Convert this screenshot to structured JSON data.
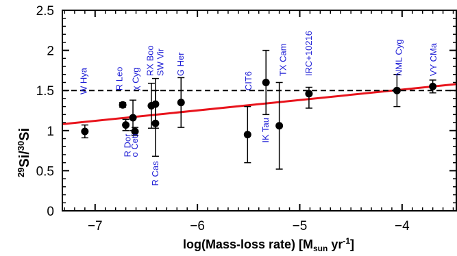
{
  "chart_data": {
    "type": "scatter",
    "xlabel": {
      "text": "log(Mass-loss rate) [M",
      "sub": "sun",
      "tail": " yr",
      "sup": "-1",
      "end": "]"
    },
    "ylabel": {
      "sup1": "29",
      "mid": "Si/",
      "sup2": "30",
      "end": "Si"
    },
    "xlim": [
      -7.32,
      -3.47
    ],
    "ylim": [
      0,
      2.5
    ],
    "x_ticks": [
      {
        "value": -7,
        "label": "−7"
      },
      {
        "value": -6,
        "label": "−6"
      },
      {
        "value": -5,
        "label": "−5"
      },
      {
        "value": -4,
        "label": "−4"
      }
    ],
    "y_ticks": [
      {
        "value": 0,
        "label": "0"
      },
      {
        "value": 0.5,
        "label": "0.5"
      },
      {
        "value": 1,
        "label": "1"
      },
      {
        "value": 1.5,
        "label": "1.5"
      },
      {
        "value": 2,
        "label": "2"
      },
      {
        "value": 2.5,
        "label": "2.5"
      }
    ],
    "points": [
      {
        "x": -7.1,
        "y": 0.99,
        "yerr_low": 0.08,
        "yerr_high": 0.08
      },
      {
        "x": -6.73,
        "y": 1.32,
        "yerr_low": 0.03,
        "yerr_high": 0.03
      },
      {
        "x": -6.7,
        "y": 1.07,
        "yerr_low": 0.07,
        "yerr_high": 0.07
      },
      {
        "x": -6.63,
        "y": 1.16,
        "yerr_low": 0.16,
        "yerr_high": 0.22
      },
      {
        "x": -6.61,
        "y": 0.99,
        "yerr_low": 0.05,
        "yerr_high": 0.05
      },
      {
        "x": -6.45,
        "y": 1.31,
        "yerr_low": 0.28,
        "yerr_high": 0.28
      },
      {
        "x": -6.41,
        "y": 1.33,
        "yerr_low": 0.3,
        "yerr_high": 0.32
      },
      {
        "x": -6.41,
        "y": 1.09,
        "yerr_low": 0.41,
        "yerr_high": 0.41
      },
      {
        "x": -6.16,
        "y": 1.35,
        "yerr_low": 0.31,
        "yerr_high": 0.31
      },
      {
        "x": -5.51,
        "y": 0.95,
        "yerr_low": 0.35,
        "yerr_high": 0.35
      },
      {
        "x": -5.33,
        "y": 1.6,
        "yerr_low": 0.4,
        "yerr_high": 0.4
      },
      {
        "x": -5.2,
        "y": 1.06,
        "yerr_low": 0.54,
        "yerr_high": 0.54
      },
      {
        "x": -4.91,
        "y": 1.46,
        "yerr_low": 0.18,
        "yerr_high": 0.08
      },
      {
        "x": -4.05,
        "y": 1.5,
        "yerr_low": 0.2,
        "yerr_high": 0.2
      },
      {
        "x": -3.7,
        "y": 1.55,
        "yerr_low": 0.08,
        "yerr_high": 0.08
      }
    ],
    "star_labels": [
      {
        "text": "W Hya",
        "x": -7.11,
        "y": 1.45,
        "anchor": "start"
      },
      {
        "text": "R Leo",
        "x": -6.76,
        "y": 1.5,
        "anchor": "start"
      },
      {
        "text": "χ Cyg",
        "x": -6.6,
        "y": 1.5,
        "anchor": "start"
      },
      {
        "text": "RX Boo",
        "x": -6.46,
        "y": 1.68,
        "anchor": "start"
      },
      {
        "text": "SW Vir",
        "x": -6.36,
        "y": 1.68,
        "anchor": "start"
      },
      {
        "text": "G Her",
        "x": -6.16,
        "y": 1.68,
        "anchor": "start"
      },
      {
        "text": "CIT6",
        "x": -5.5,
        "y": 1.5,
        "anchor": "start"
      },
      {
        "text": "TX Cam",
        "x": -5.16,
        "y": 1.68,
        "anchor": "start"
      },
      {
        "text": "IRC+10216",
        "x": -4.91,
        "y": 1.68,
        "anchor": "start"
      },
      {
        "text": "NML Cyg",
        "x": -4.03,
        "y": 1.68,
        "anchor": "start"
      },
      {
        "text": "VY CMa",
        "x": -3.69,
        "y": 1.68,
        "anchor": "start"
      },
      {
        "text": "R Dor",
        "x": -6.68,
        "y": 0.96,
        "anchor": "end"
      },
      {
        "text": "o Ceti",
        "x": -6.61,
        "y": 0.96,
        "anchor": "end"
      },
      {
        "text": "R Cas",
        "x": -6.41,
        "y": 0.62,
        "anchor": "end"
      },
      {
        "text": "IK Tau",
        "x": -5.33,
        "y": 1.16,
        "anchor": "end"
      }
    ],
    "reference_line": {
      "y": 1.5,
      "style": "dashed",
      "color": "#000000"
    },
    "fit_line": {
      "x": [
        -7.32,
        -3.47
      ],
      "y": [
        1.08,
        1.58
      ],
      "color": "#e8141c"
    },
    "colors": {
      "points": "#000000",
      "labels": "#1f1fd6",
      "frame": "#000000"
    },
    "grid": false,
    "legend": "none"
  }
}
